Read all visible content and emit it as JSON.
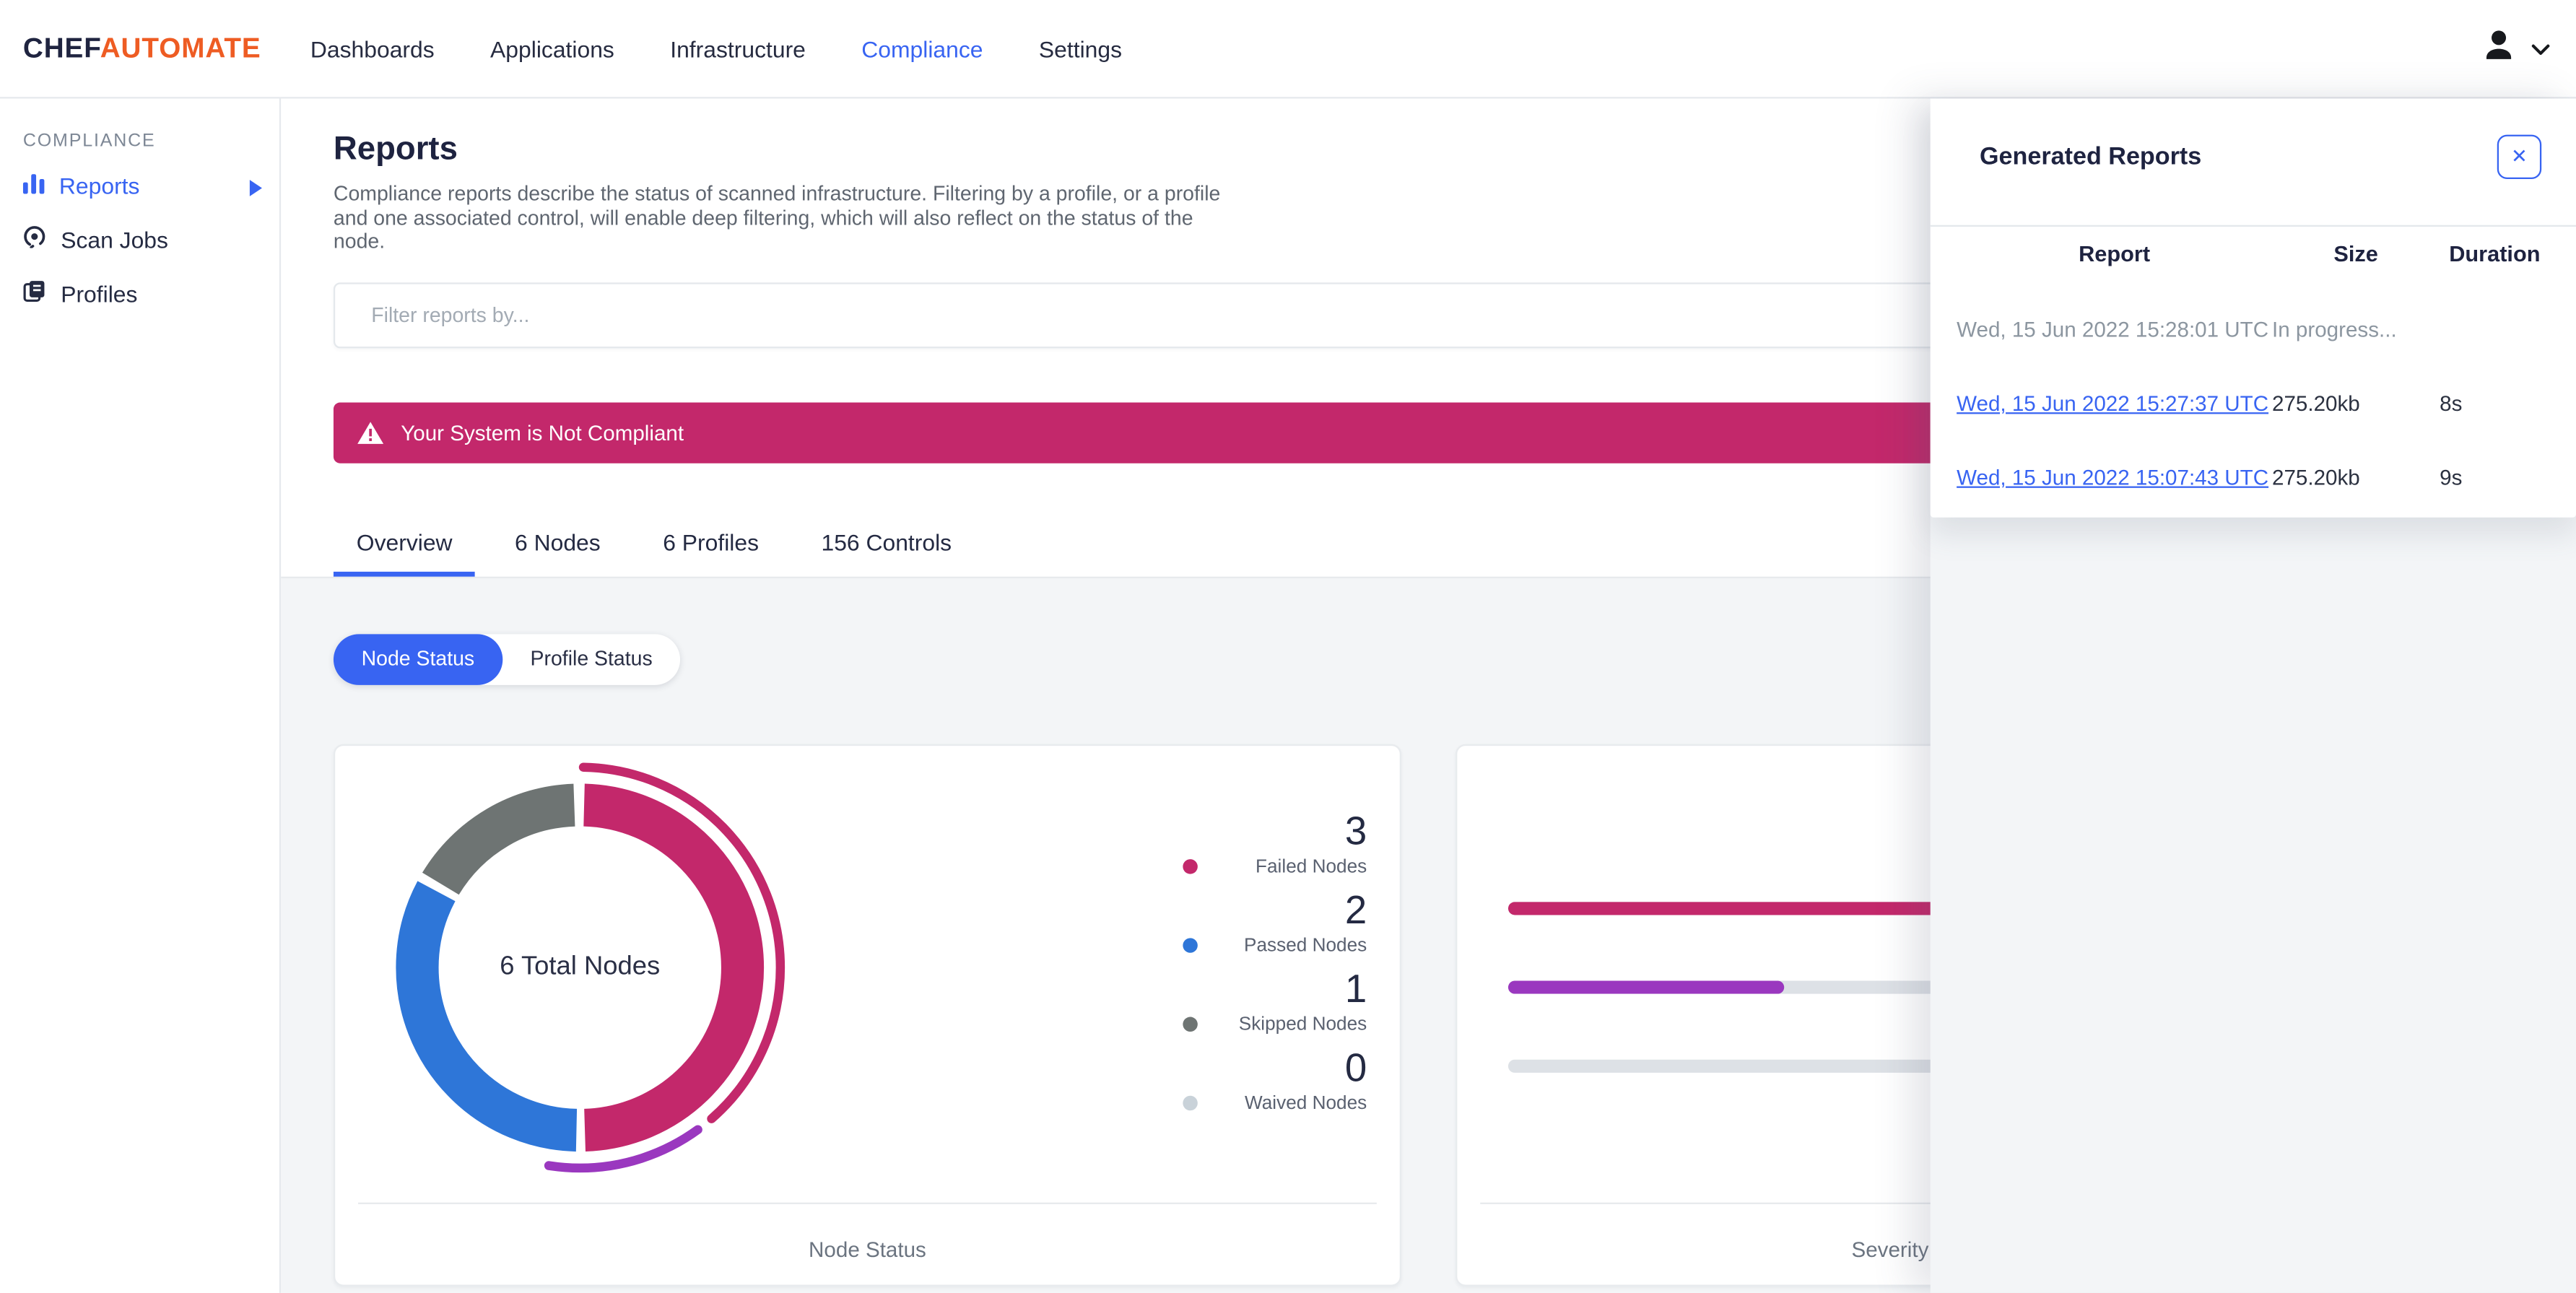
{
  "header": {
    "brand": {
      "part1": "CHEF",
      "part2": "AUTOMATE"
    },
    "nav_items": [
      {
        "label": "Dashboards"
      },
      {
        "label": "Applications"
      },
      {
        "label": "Infrastructure"
      },
      {
        "label": "Compliance"
      },
      {
        "label": "Settings"
      }
    ],
    "active_item": "Compliance"
  },
  "sidebar": {
    "section_label": "COMPLIANCE",
    "items": [
      {
        "label": "Reports"
      },
      {
        "label": "Scan Jobs"
      },
      {
        "label": "Profiles"
      }
    ],
    "active_item": "Reports"
  },
  "page": {
    "title": "Reports",
    "description": "Compliance reports describe the status of scanned infrastructure. Filtering by a profile, or a profile and one associated control, will enable deep filtering, which will also reflect on the status of the node.",
    "filter_placeholder": "Filter reports by...",
    "banner_text": "Your System is Not Compliant",
    "tabs": [
      {
        "label": "Overview"
      },
      {
        "label": "6 Nodes"
      },
      {
        "label": "6 Profiles"
      },
      {
        "label": "156 Controls"
      }
    ],
    "active_tab": "Overview",
    "status_toggle": [
      {
        "label": "Node Status"
      },
      {
        "label": "Profile Status"
      }
    ],
    "active_toggle": "Node Status"
  },
  "node_status_card": {
    "center_label": "6 Total Nodes",
    "legend": [
      {
        "value": "3",
        "label": "Failed Nodes",
        "color": "#c3286b"
      },
      {
        "value": "2",
        "label": "Passed Nodes",
        "color": "#2e76d8"
      },
      {
        "value": "1",
        "label": "Skipped Nodes",
        "color": "#6e7473"
      },
      {
        "value": "0",
        "label": "Waived Nodes",
        "color": "#c9d2d9"
      }
    ],
    "footer_label": "Node Status"
  },
  "severity_card": {
    "footer_label": "Severity"
  },
  "generated_reports_panel": {
    "title": "Generated Reports",
    "close_label": "✕",
    "columns": [
      "Report",
      "Size",
      "Duration"
    ],
    "rows": [
      {
        "report": "Wed, 15 Jun 2022 15:28:01 UTC",
        "size": "In progress...",
        "duration": "",
        "is_link": false
      },
      {
        "report": "Wed, 15 Jun 2022 15:27:37 UTC",
        "size": "275.20kb",
        "duration": "8s",
        "is_link": true
      },
      {
        "report": "Wed, 15 Jun 2022 15:07:43 UTC",
        "size": "275.20kb",
        "duration": "9s",
        "is_link": true
      }
    ]
  },
  "colors": {
    "primary_blue": "#3864f2",
    "brand_orange": "#ee5c23",
    "critical_pink": "#c3286b",
    "passed_blue": "#2e76d8",
    "skipped_gray": "#6e7473",
    "waived_gray": "#c9d2d9",
    "purple": "#9a38bf",
    "page_bg": "#f3f5f7"
  },
  "chart_data": [
    {
      "type": "pie",
      "variant": "donut",
      "title": "Node Status",
      "center_label": "6 Total Nodes",
      "categories": [
        "Failed Nodes",
        "Passed Nodes",
        "Skipped Nodes",
        "Waived Nodes"
      ],
      "values": [
        3,
        2,
        1,
        0
      ],
      "colors": [
        "#c3286b",
        "#2e76d8",
        "#6e7473",
        "#c9d2d9"
      ],
      "start_angle_deg": 0,
      "direction": "clockwise",
      "outer_arcs": [
        {
          "color": "#c3286b",
          "start_deg": 1,
          "end_deg": 139
        },
        {
          "color": "#9a38bf",
          "start_deg": 144,
          "end_deg": 189
        }
      ]
    },
    {
      "type": "bar",
      "orientation": "horizontal",
      "title": "Severity",
      "categories": [
        "bar-1",
        "bar-2",
        "bar-3"
      ],
      "values_pct": [
        100,
        30,
        0
      ],
      "colors": [
        "#c3286b",
        "#9a38bf",
        "#dde1e6"
      ],
      "note": "bar lengths estimated from pixels; numeric values not shown on screen"
    }
  ]
}
